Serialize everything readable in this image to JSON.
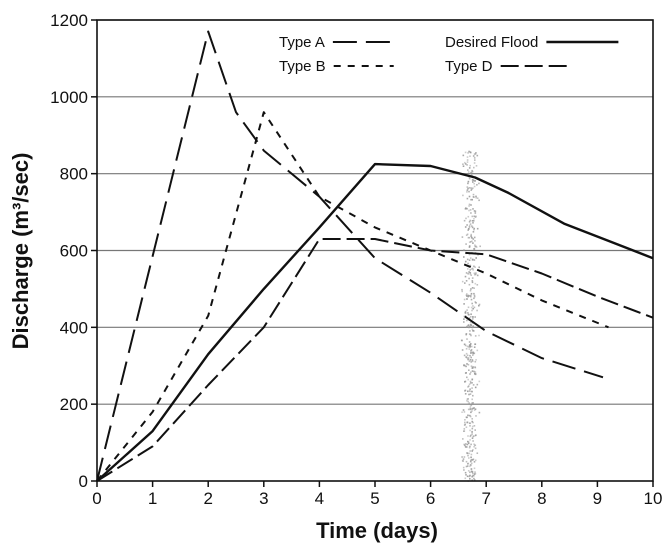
{
  "chart_data": {
    "type": "line",
    "xlabel": "Time (days)",
    "ylabel": "Discharge (m³/sec)",
    "xlim": [
      0,
      10
    ],
    "ylim": [
      0,
      1200
    ],
    "x_ticks": [
      "0",
      "1",
      "2",
      "3",
      "4",
      "5",
      "6",
      "7",
      "8",
      "9",
      "10"
    ],
    "y_ticks": [
      "0",
      "200",
      "400",
      "600",
      "800",
      "1000",
      "1200"
    ],
    "grid": "horizontal",
    "legend_position": "top-right",
    "series": [
      {
        "name": "Type A",
        "dash": "long-dash",
        "color": "#111111",
        "points": [
          [
            0,
            0
          ],
          [
            2,
            1170
          ],
          [
            2.5,
            960
          ],
          [
            3,
            860
          ],
          [
            4,
            740
          ],
          [
            5,
            580
          ],
          [
            6,
            490
          ],
          [
            7,
            390
          ],
          [
            8,
            320
          ],
          [
            9.1,
            270
          ]
        ]
      },
      {
        "name": "Type B",
        "dash": "short-dash",
        "color": "#111111",
        "points": [
          [
            0,
            0
          ],
          [
            1,
            180
          ],
          [
            2,
            430
          ],
          [
            3,
            960
          ],
          [
            4,
            740
          ],
          [
            5,
            660
          ],
          [
            6,
            600
          ],
          [
            7,
            540
          ],
          [
            8,
            470
          ],
          [
            9.2,
            400
          ]
        ]
      },
      {
        "name": "Desired Flood",
        "dash": "solid",
        "color": "#111111",
        "points": [
          [
            0,
            0
          ],
          [
            1,
            130
          ],
          [
            2,
            330
          ],
          [
            3,
            500
          ],
          [
            4,
            660
          ],
          [
            5,
            825
          ],
          [
            6,
            820
          ],
          [
            6.8,
            790
          ],
          [
            7.4,
            750
          ],
          [
            8.4,
            670
          ],
          [
            9.2,
            625
          ],
          [
            10,
            580
          ]
        ]
      },
      {
        "name": "Type D",
        "dash": "dash-long",
        "color": "#111111",
        "points": [
          [
            0,
            0
          ],
          [
            1,
            90
          ],
          [
            2,
            250
          ],
          [
            3,
            400
          ],
          [
            4,
            630
          ],
          [
            5,
            630
          ],
          [
            6,
            600
          ],
          [
            7,
            590
          ],
          [
            8,
            540
          ],
          [
            9,
            480
          ],
          [
            10,
            425
          ]
        ]
      }
    ],
    "annotations": [
      {
        "type": "stipple-band",
        "x_center": 6.7,
        "y_from": 0,
        "y_to": 860,
        "color": "#9a9a9a"
      }
    ]
  }
}
